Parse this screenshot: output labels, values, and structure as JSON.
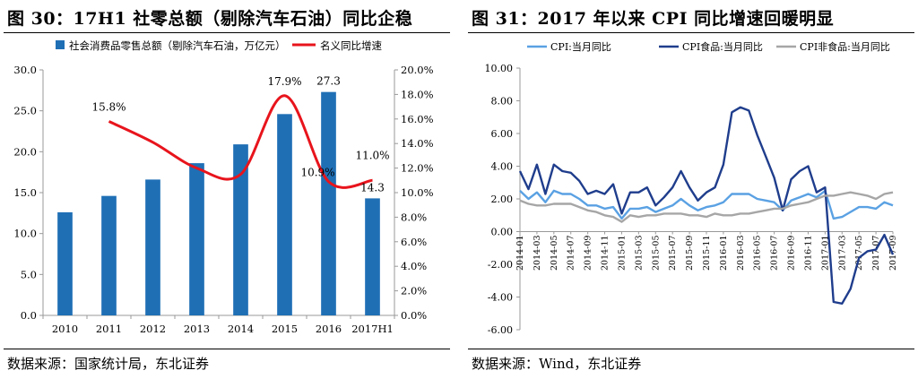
{
  "left": {
    "title": "图 30：17H1 社零总额（剔除汽车石油）同比企稳",
    "source": "数据来源：国家统计局，东北证券"
  },
  "right": {
    "title": "图 31：2017 年以来 CPI 同比增速回暖明显",
    "source": "数据来源：Wind，东北证券"
  },
  "chart_data": [
    {
      "type": "bar",
      "categories": [
        "2010",
        "2011",
        "2012",
        "2013",
        "2014",
        "2015",
        "2016",
        "2017H1"
      ],
      "series": [
        {
          "name": "社会消费品零售总额（剔除汽车石油，万亿元）",
          "type": "bar",
          "axis": "left",
          "values": [
            12.6,
            14.6,
            16.6,
            18.6,
            20.9,
            24.6,
            27.3,
            14.3
          ],
          "color": "#1f6fb5"
        },
        {
          "name": "名义同比增速",
          "type": "line",
          "axis": "right",
          "values": [
            null,
            15.8,
            14.1,
            12.0,
            11.5,
            17.9,
            10.9,
            11.0
          ],
          "color": "#e8141c"
        }
      ],
      "data_labels": [
        {
          "text": "15.8%",
          "category": "2011",
          "series": "名义同比增速"
        },
        {
          "text": "17.9%",
          "category": "2015",
          "series": "名义同比增速"
        },
        {
          "text": "10.9%",
          "category": "2016",
          "series": "名义同比增速"
        },
        {
          "text": "11.0%",
          "category": "2017H1",
          "series": "名义同比增速"
        },
        {
          "text": "27.3",
          "category": "2016",
          "series": "社会消费品零售总额（剔除汽车石油，万亿元）"
        },
        {
          "text": "14.3",
          "category": "2017H1",
          "series": "社会消费品零售总额（剔除汽车石油，万亿元）"
        }
      ],
      "yticks": [
        "0.0",
        "5.0",
        "10.0",
        "15.0",
        "20.0",
        "25.0",
        "30.0"
      ],
      "ylim": [
        0,
        30
      ],
      "y2ticks": [
        "0.0%",
        "2.0%",
        "4.0%",
        "6.0%",
        "8.0%",
        "10.0%",
        "12.0%",
        "14.0%",
        "16.0%",
        "18.0%",
        "20.0%"
      ],
      "y2lim": [
        0,
        20
      ],
      "grid": false,
      "legend": "top"
    },
    {
      "type": "line",
      "x": [
        "2014-01",
        "2014-02",
        "2014-03",
        "2014-04",
        "2014-05",
        "2014-06",
        "2014-07",
        "2014-08",
        "2014-09",
        "2014-10",
        "2014-11",
        "2014-12",
        "2015-01",
        "2015-02",
        "2015-03",
        "2015-04",
        "2015-05",
        "2015-06",
        "2015-07",
        "2015-08",
        "2015-09",
        "2015-10",
        "2015-11",
        "2015-12",
        "2016-01",
        "2016-02",
        "2016-03",
        "2016-04",
        "2016-05",
        "2016-06",
        "2016-07",
        "2016-08",
        "2016-09",
        "2016-10",
        "2016-11",
        "2016-12",
        "2017-01",
        "2017-02",
        "2017-03",
        "2017-04",
        "2017-05",
        "2017-06",
        "2017-07",
        "2017-08",
        "2017-09"
      ],
      "xticks": [
        "2014-01",
        "2014-03",
        "2014-05",
        "2014-07",
        "2014-09",
        "2014-11",
        "2015-01",
        "2015-03",
        "2015-05",
        "2015-07",
        "2015-09",
        "2015-11",
        "2016-01",
        "2016-03",
        "2016-05",
        "2016-07",
        "2016-09",
        "2016-11",
        "2017-01",
        "2017-03",
        "2017-05",
        "2017-07",
        "2017-09"
      ],
      "xtick_labels": [
        "2014-01",
        "2014-03",
        "2014-05",
        "2014-07",
        "2014-09",
        "2014-11",
        "2015-01",
        "2015-03",
        "2015-05",
        "2015-07",
        "2015-09",
        "2015-11",
        "2016-01",
        "2016-03",
        "2016-05",
        "2016-07",
        "2016-09",
        "2016-11",
        "2017-01",
        "2017-03",
        "2017-05",
        "2017-07",
        "2017-09"
      ],
      "series": [
        {
          "name": "CPI:当月同比",
          "color": "#5aa1e3",
          "values": [
            2.5,
            2.0,
            2.4,
            1.8,
            2.5,
            2.3,
            2.3,
            2.0,
            1.6,
            1.6,
            1.4,
            1.5,
            0.8,
            1.4,
            1.4,
            1.5,
            1.2,
            1.4,
            1.6,
            2.0,
            1.6,
            1.3,
            1.5,
            1.6,
            1.8,
            2.3,
            2.3,
            2.3,
            2.0,
            1.9,
            1.8,
            1.3,
            1.9,
            2.1,
            2.3,
            2.1,
            2.5,
            0.8,
            0.9,
            1.2,
            1.5,
            1.5,
            1.4,
            1.8,
            1.6
          ]
        },
        {
          "name": "CPI食品:当月同比",
          "color": "#1f3d8c",
          "values": [
            3.7,
            2.6,
            4.1,
            2.3,
            4.1,
            3.7,
            3.6,
            3.1,
            2.3,
            2.5,
            2.3,
            2.9,
            1.1,
            2.4,
            2.4,
            2.7,
            1.6,
            2.1,
            2.7,
            3.7,
            2.7,
            1.9,
            2.4,
            2.7,
            4.1,
            7.3,
            7.6,
            7.4,
            5.9,
            4.6,
            3.3,
            1.3,
            3.2,
            3.7,
            4.0,
            2.4,
            2.7,
            -4.3,
            -4.4,
            -3.5,
            -1.6,
            -1.2,
            -1.1,
            -0.2,
            -1.4
          ]
        },
        {
          "name": "CPI非食品:当月同比",
          "color": "#a6a6a6",
          "values": [
            1.9,
            1.7,
            1.6,
            1.6,
            1.7,
            1.7,
            1.7,
            1.5,
            1.3,
            1.2,
            1.0,
            0.9,
            0.6,
            1.0,
            0.9,
            1.0,
            1.0,
            1.1,
            1.1,
            1.1,
            1.0,
            1.0,
            0.9,
            1.1,
            1.0,
            1.0,
            1.1,
            1.1,
            1.2,
            1.3,
            1.4,
            1.4,
            1.6,
            1.7,
            1.8,
            2.0,
            2.2,
            2.2,
            2.3,
            2.4,
            2.3,
            2.2,
            2.0,
            2.3,
            2.4
          ]
        }
      ],
      "yticks": [
        "-6.00",
        "-4.00",
        "-2.00",
        "0.00",
        "2.00",
        "4.00",
        "6.00",
        "8.00",
        "10.00"
      ],
      "ylim": [
        -6,
        10
      ],
      "grid": false,
      "legend": "top"
    }
  ]
}
